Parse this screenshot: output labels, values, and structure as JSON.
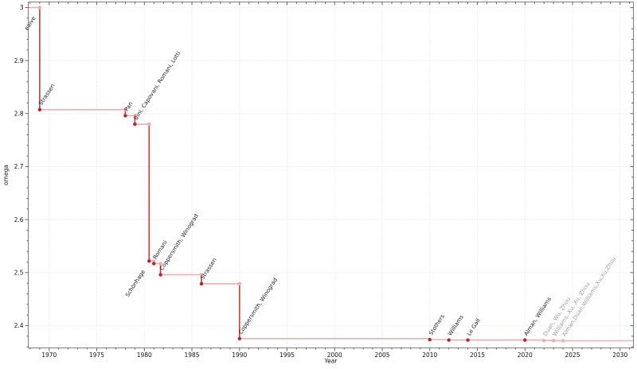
{
  "figure": {
    "background": "#ffffff"
  },
  "chart_data": {
    "type": "line",
    "draw_style": "steps-post",
    "title": "",
    "xlabel": "Year",
    "ylabel": "omega",
    "legend": "none",
    "grid": "dotted-major",
    "xlim": [
      1967.8,
      2031.4
    ],
    "ylim": [
      2.358,
      3.0105
    ],
    "xticks": [
      1970,
      1975,
      1980,
      1985,
      1990,
      1995,
      2000,
      2005,
      2010,
      2015,
      2020,
      2025,
      2030
    ],
    "xtick_labels": [
      "1970",
      "1975",
      "1980",
      "1985",
      "1990",
      "1995",
      "2000",
      "2005",
      "2010",
      "2015",
      "2020",
      "2025",
      "2030"
    ],
    "yticks": [
      2.4,
      2.5,
      2.6,
      2.7,
      2.8,
      2.9,
      3.0
    ],
    "ytick_labels": [
      "2.4",
      "2.5",
      "2.6",
      "2.7",
      "2.8",
      "2.9",
      "3"
    ],
    "x_minor_step": 1,
    "y_minor_step": 0.02,
    "colors": {
      "line_light": "#f1adae",
      "line_strong": "#d63b3d",
      "marker_dark": "#b9242a",
      "marker_light": "#f3abac",
      "label_black": "#1a1a1a",
      "label_gray": "#9c9c9c",
      "grid": "#e0e0e0",
      "frame": "#7f7f7f",
      "tick": "#444444",
      "tick_label": "#111111"
    },
    "points": [
      {
        "year": 1969,
        "omega": 3.0,
        "label": "naive",
        "style": "light",
        "label_color": "black",
        "label_side": "below"
      },
      {
        "year": 1969,
        "omega": 2.8074,
        "label": "Strassen",
        "style": "dark",
        "label_color": "black",
        "label_side": "above"
      },
      {
        "year": 1978,
        "omega": 2.796,
        "label": "Pan",
        "style": "dark",
        "label_color": "black",
        "label_side": "above"
      },
      {
        "year": 1979,
        "omega": 2.78,
        "label": "Bini, Capovani, Romani, Lotti",
        "style": "dark",
        "label_color": "black",
        "label_side": "above"
      },
      {
        "year": 1980.5,
        "omega": 2.522,
        "label": "Schönhage",
        "style": "dark",
        "label_color": "black",
        "label_side": "below"
      },
      {
        "year": 1981,
        "omega": 2.517,
        "label": "Romani",
        "style": "dark",
        "label_color": "black",
        "label_side": "above"
      },
      {
        "year": 1981.7,
        "omega": 2.496,
        "label": "Coppersmith, Winograd",
        "style": "dark",
        "label_color": "black",
        "label_side": "above"
      },
      {
        "year": 1986,
        "omega": 2.479,
        "label": "Strassen",
        "style": "dark",
        "label_color": "black",
        "label_side": "above"
      },
      {
        "year": 1990,
        "omega": 2.3755,
        "label": "Coppersmith, Winograd",
        "style": "dark",
        "label_color": "black",
        "label_side": "above"
      },
      {
        "year": 2010,
        "omega": 2.3737,
        "label": "Stothers",
        "style": "dark",
        "label_color": "black",
        "label_side": "above"
      },
      {
        "year": 2012,
        "omega": 2.3729,
        "label": "Williams",
        "style": "dark",
        "label_color": "black",
        "label_side": "above"
      },
      {
        "year": 2014,
        "omega": 2.37287,
        "label": "Le Gall",
        "style": "dark",
        "label_color": "black",
        "label_side": "above"
      },
      {
        "year": 2020,
        "omega": 2.37286,
        "label": "Alman, Williams",
        "style": "dark",
        "label_color": "black",
        "label_side": "above"
      },
      {
        "year": 2022,
        "omega": 2.37188,
        "label": "Duan, Wu, Zhou",
        "style": "light",
        "label_color": "gray",
        "label_side": "above"
      },
      {
        "year": 2023,
        "omega": 2.37186,
        "label": "Williams, Xu, Xu, Zhou",
        "style": "light",
        "label_color": "gray",
        "label_side": "above"
      },
      {
        "year": 2024,
        "omega": 2.37155,
        "label": "Alman,Duan,Williams,Xu,Xu,Zhou",
        "style": "light",
        "label_color": "gray",
        "label_side": "above"
      }
    ]
  }
}
